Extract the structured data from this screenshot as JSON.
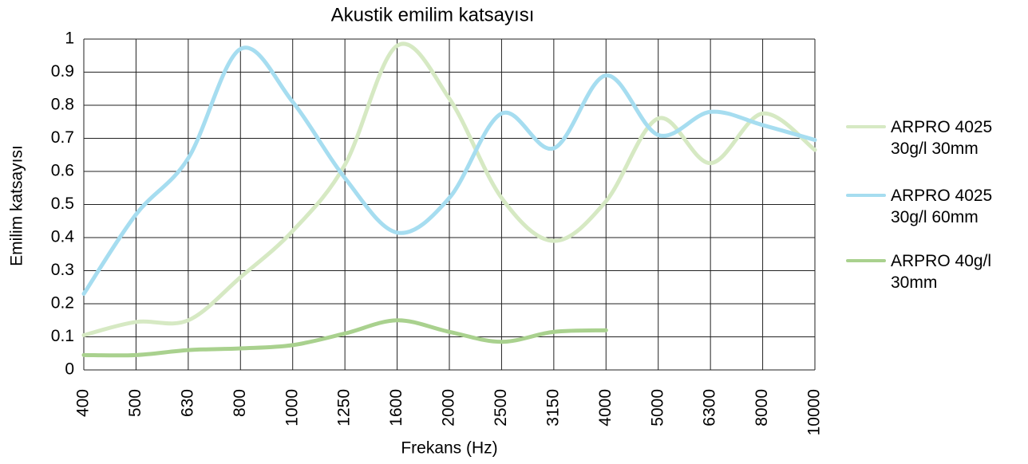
{
  "chart_data": {
    "type": "line",
    "title": "Akustik emilim katsayısı",
    "x_label": "Frekans (Hz)",
    "y_label": "Emilim katsayısı",
    "categories": [
      "400",
      "500",
      "630",
      "800",
      "1000",
      "1250",
      "1600",
      "2000",
      "2500",
      "3150",
      "4000",
      "5000",
      "6300",
      "8000",
      "10000"
    ],
    "series": [
      {
        "name": "ARPRO 4025 30g/l 30mm",
        "color": "#d6e9c3",
        "values": [
          0.105,
          0.145,
          0.15,
          0.28,
          0.42,
          0.62,
          0.98,
          0.82,
          0.52,
          0.39,
          0.51,
          0.76,
          0.625,
          0.775,
          0.665
        ]
      },
      {
        "name": "ARPRO 4025 30g/l 60mm",
        "color": "#a6ddf0",
        "values": [
          0.23,
          0.47,
          0.64,
          0.97,
          0.81,
          0.58,
          0.415,
          0.52,
          0.775,
          0.67,
          0.89,
          0.71,
          0.78,
          0.74,
          0.695
        ]
      },
      {
        "name": "ARPRO 40g/l 30mm",
        "color": "#a9d18e",
        "values": [
          0.045,
          0.045,
          0.06,
          0.065,
          0.075,
          0.11,
          0.15,
          0.115,
          0.085,
          0.115,
          0.12,
          null,
          null,
          null,
          null
        ]
      }
    ],
    "ylim": [
      0,
      1
    ],
    "yticks": [
      0,
      0.1,
      0.2,
      0.3,
      0.4,
      0.5,
      0.6,
      0.7,
      0.8,
      0.9,
      1
    ],
    "grid": true,
    "legend": "right"
  }
}
